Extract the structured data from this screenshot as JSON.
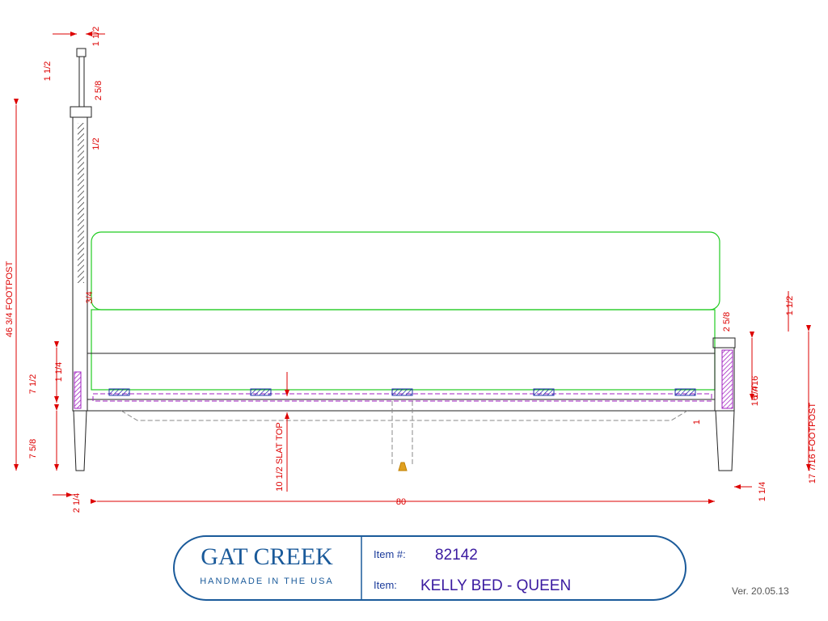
{
  "dimensions": [
    {
      "label": "1 1/2"
    },
    {
      "label": "1 1/2"
    },
    {
      "label": "2 5/8"
    },
    {
      "label": "1/2"
    },
    {
      "label": "3/4"
    },
    {
      "label": "46 3/4 FOOTPOST"
    },
    {
      "label": "7 1/2"
    },
    {
      "label": "1 1/4"
    },
    {
      "label": "7 5/8"
    },
    {
      "label": "2 1/4"
    },
    {
      "label": "80"
    },
    {
      "label": "10 1/2 SLAT TOP"
    },
    {
      "label": "1 1/2"
    },
    {
      "label": "2 5/8"
    },
    {
      "label": "6 7/16"
    },
    {
      "label": "1 1/4"
    },
    {
      "label": "1"
    },
    {
      "label": "17 7/16 FOOTPOST"
    },
    {
      "label": "1 1/4"
    }
  ],
  "title_block": {
    "brand": "GAT CREEK",
    "tagline": "HANDMADE IN THE USA",
    "item_number_label": "Item #:",
    "item_number": "82142",
    "item_label": "Item:",
    "item_name": "KELLY BED - QUEEN",
    "version": "Ver. 20.05.13"
  }
}
